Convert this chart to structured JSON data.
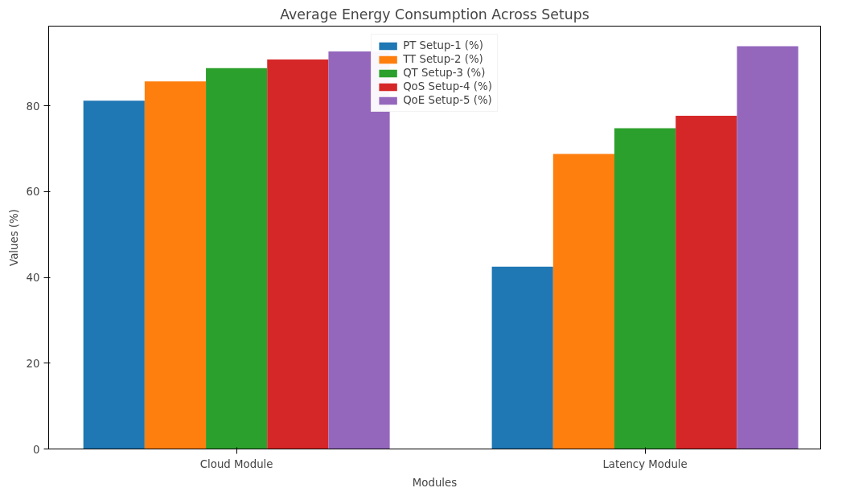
{
  "chart_data": {
    "type": "bar",
    "title": "Average Energy Consumption Across Setups",
    "xlabel": "Modules",
    "ylabel": "Values (%)",
    "categories": [
      "Cloud Module",
      "Latency Module"
    ],
    "series": [
      {
        "name": "PT Setup-1 (%)",
        "color": "#1f77b4",
        "values": [
          81.2,
          42.5
        ]
      },
      {
        "name": "TT Setup-2 (%)",
        "color": "#ff7f0e",
        "values": [
          85.7,
          68.8
        ]
      },
      {
        "name": "QT Setup-3 (%)",
        "color": "#2ca02c",
        "values": [
          88.8,
          74.8
        ]
      },
      {
        "name": "QoS Setup-4 (%)",
        "color": "#d62728",
        "values": [
          90.8,
          77.7
        ]
      },
      {
        "name": "QoE Setup-5 (%)",
        "color": "#9467bd",
        "values": [
          92.7,
          93.9
        ]
      }
    ],
    "ylim": [
      0,
      98.6
    ],
    "yticks": [
      0,
      20,
      40,
      60,
      80
    ],
    "grid": false,
    "legend": "top"
  }
}
